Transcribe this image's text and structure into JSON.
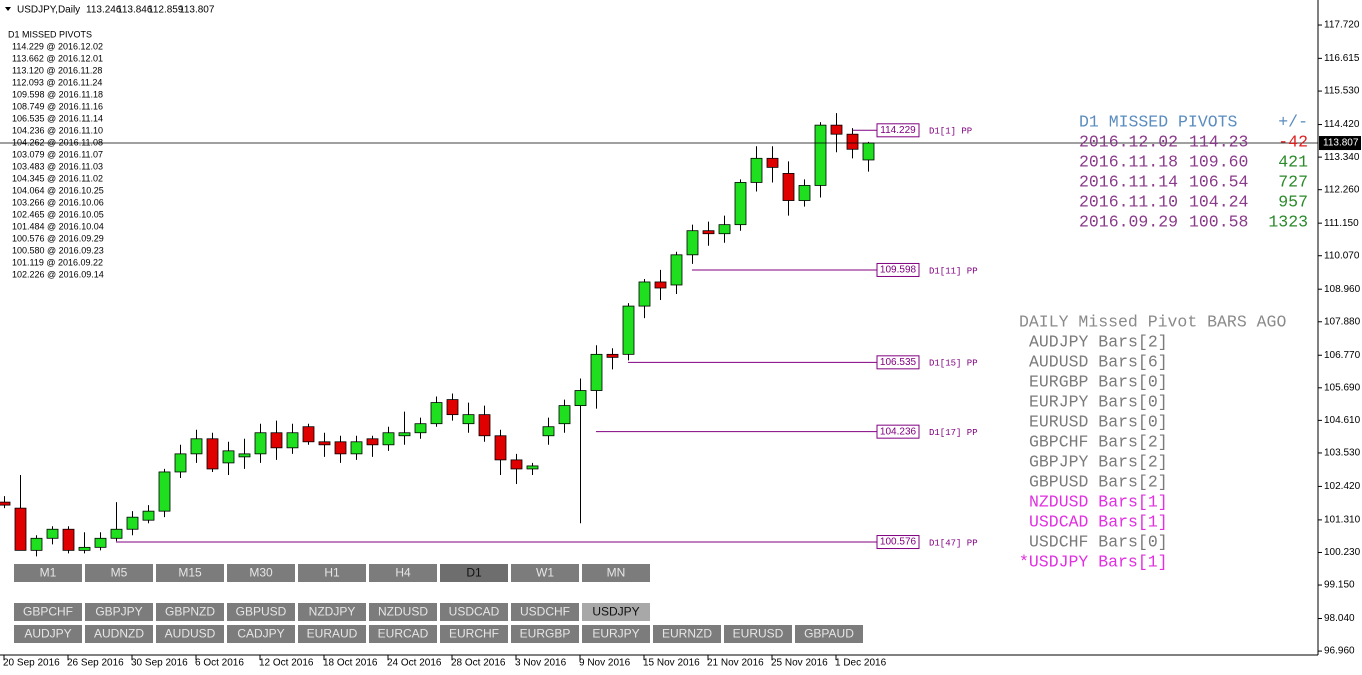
{
  "header": {
    "symbol": "USDJPY,Daily"
  },
  "chart_data": {
    "type": "candlestick",
    "categories": [
      "20 Sep 2016",
      null,
      null,
      null,
      "26 Sep 2016",
      null,
      null,
      null,
      "30 Sep 2016",
      null,
      null,
      null,
      "6 Oct 2016",
      null,
      null,
      null,
      "12 Oct 2016",
      null,
      null,
      null,
      "18 Oct 2016",
      null,
      null,
      null,
      "24 Oct 2016",
      null,
      null,
      null,
      "28 Oct 2016",
      null,
      null,
      null,
      "3 Nov 2016",
      null,
      null,
      null,
      "9 Nov 2016",
      null,
      null,
      null,
      "15 Nov 2016",
      null,
      null,
      null,
      "21 Nov 2016",
      null,
      null,
      null,
      "25 Nov 2016",
      null,
      null,
      null,
      "1 Dec 2016",
      null,
      null
    ],
    "ohlc": [
      [
        101.9,
        102.1,
        101.7,
        101.8
      ],
      [
        101.7,
        102.8,
        100.3,
        100.3
      ],
      [
        100.3,
        100.8,
        100.1,
        100.7
      ],
      [
        100.7,
        101.1,
        100.5,
        101.0
      ],
      [
        101.0,
        101.1,
        100.2,
        100.3
      ],
      [
        100.3,
        100.9,
        100.2,
        100.4
      ],
      [
        100.4,
        100.9,
        100.3,
        100.7
      ],
      [
        100.7,
        101.9,
        100.6,
        101.0
      ],
      [
        101.0,
        101.6,
        100.8,
        101.4
      ],
      [
        101.3,
        101.8,
        101.2,
        101.6
      ],
      [
        101.6,
        103.0,
        101.4,
        102.9
      ],
      [
        102.9,
        103.8,
        102.7,
        103.5
      ],
      [
        103.5,
        104.3,
        103.2,
        104.0
      ],
      [
        104.0,
        104.2,
        102.9,
        103.0
      ],
      [
        103.2,
        103.9,
        102.8,
        103.6
      ],
      [
        103.4,
        104.0,
        103.0,
        103.5
      ],
      [
        103.5,
        104.5,
        103.2,
        104.2
      ],
      [
        104.2,
        104.6,
        103.3,
        103.7
      ],
      [
        103.7,
        104.5,
        103.5,
        104.2
      ],
      [
        104.4,
        104.5,
        103.8,
        103.9
      ],
      [
        103.9,
        104.2,
        103.4,
        103.8
      ],
      [
        103.9,
        104.1,
        103.2,
        103.5
      ],
      [
        103.5,
        104.1,
        103.3,
        103.9
      ],
      [
        104.0,
        104.1,
        103.4,
        103.8
      ],
      [
        103.8,
        104.4,
        103.6,
        104.2
      ],
      [
        104.1,
        104.9,
        103.8,
        104.2
      ],
      [
        104.2,
        104.7,
        104.0,
        104.5
      ],
      [
        104.5,
        105.4,
        104.4,
        105.2
      ],
      [
        105.3,
        105.5,
        104.6,
        104.8
      ],
      [
        104.5,
        105.2,
        104.2,
        104.8
      ],
      [
        104.8,
        105.1,
        103.9,
        104.1
      ],
      [
        104.1,
        104.3,
        102.8,
        103.3
      ],
      [
        103.3,
        103.5,
        102.5,
        103.0
      ],
      [
        103.0,
        103.2,
        102.8,
        103.1
      ],
      [
        104.1,
        104.7,
        103.8,
        104.4
      ],
      [
        104.5,
        105.3,
        104.2,
        105.1
      ],
      [
        105.1,
        106.0,
        101.2,
        105.6
      ],
      [
        105.6,
        107.1,
        105.0,
        106.8
      ],
      [
        106.8,
        107.0,
        106.3,
        106.7
      ],
      [
        106.8,
        108.5,
        106.6,
        108.4
      ],
      [
        108.4,
        109.3,
        108.0,
        109.2
      ],
      [
        109.2,
        109.6,
        108.6,
        109.0
      ],
      [
        109.1,
        110.2,
        108.8,
        110.1
      ],
      [
        110.1,
        111.1,
        109.8,
        110.9
      ],
      [
        110.9,
        111.2,
        110.4,
        110.8
      ],
      [
        110.8,
        111.4,
        110.5,
        111.1
      ],
      [
        111.1,
        112.6,
        110.9,
        112.5
      ],
      [
        112.5,
        113.7,
        112.2,
        113.3
      ],
      [
        113.3,
        113.7,
        112.5,
        113.0
      ],
      [
        112.8,
        113.2,
        111.4,
        111.9
      ],
      [
        111.9,
        112.6,
        111.7,
        112.4
      ],
      [
        112.4,
        114.5,
        112.0,
        114.4
      ],
      [
        114.4,
        114.8,
        113.5,
        114.1
      ],
      [
        114.1,
        114.3,
        113.3,
        113.6
      ],
      [
        113.246,
        113.846,
        112.859,
        113.807
      ]
    ],
    "up_color": "#1ee01e",
    "down_color": "#e00000",
    "ylim": [
      96.83,
      118.55
    ],
    "yticks": [
      {
        "value": 117.72,
        "label": "117.720"
      },
      116.615,
      {
        "value": 115.53,
        "label": "115.530"
      },
      {
        "value": 114.42,
        "label": "114.420"
      },
      {
        "value": 113.34,
        "label": "113.340"
      },
      {
        "value": 112.26,
        "label": "112.260"
      },
      {
        "value": 111.15,
        "label": "111.150"
      },
      {
        "value": 110.07,
        "label": "110.070"
      },
      {
        "value": 108.96,
        "label": "108.960"
      },
      {
        "value": 107.88,
        "label": "107.880"
      },
      {
        "value": 106.77,
        "label": "106.770"
      },
      {
        "value": 105.69,
        "label": "105.690"
      },
      {
        "value": 104.61,
        "label": "104.610"
      },
      {
        "value": 103.53,
        "label": "103.530"
      },
      {
        "value": 102.42,
        "label": "102.420"
      },
      {
        "value": 101.31,
        "label": "101.310"
      },
      {
        "value": 100.23,
        "label": "100.230"
      },
      {
        "value": 99.15,
        "label": "99.150"
      },
      {
        "value": 98.04,
        "label": "98.040"
      },
      {
        "value": 96.96,
        "label": "96.960"
      }
    ],
    "pivots": [
      {
        "value": 114.229,
        "tag": "D1[1] PP",
        "date": "2016.12.02"
      },
      {
        "value": 109.598,
        "tag": "D1[11] PP",
        "date": "2016.11.18"
      },
      {
        "value": 106.535,
        "tag": "D1[15] PP",
        "date": "2016.11.14"
      },
      {
        "value": 104.236,
        "tag": "D1[17] PP",
        "date": "2016.11.10"
      },
      {
        "value": 100.576,
        "tag": "D1[47] PP",
        "date": "2016.09.29"
      }
    ],
    "pivot_color": "#800080"
  },
  "missed_list": {
    "title": "D1 MISSED PIVOTS",
    "items": [
      "114.229 @ 2016.12.02",
      "113.662 @ 2016.12.01",
      "113.120 @ 2016.11.28",
      "112.093 @ 2016.11.24",
      "109.598 @ 2016.11.18",
      "108.749 @ 2016.11.16",
      "106.535 @ 2016.11.14",
      "104.236 @ 2016.11.10",
      "104.262 @ 2016.11.08",
      "103.079 @ 2016.11.07",
      "103.483 @ 2016.11.03",
      "104.345 @ 2016.11.02",
      "104.064 @ 2016.10.25",
      "103.266 @ 2016.10.06",
      "102.465 @ 2016.10.05",
      "101.484 @ 2016.10.04",
      "100.576 @ 2016.09.29",
      "100.580 @ 2016.09.23",
      "101.119 @ 2016.09.22",
      "102.226 @ 2016.09.14"
    ]
  },
  "missed_table": {
    "headers": [
      "D1 MISSED PIVOTS",
      "+/-"
    ],
    "rows": [
      [
        "2016.12.02",
        "114.23",
        "-42"
      ],
      [
        "2016.11.18",
        "109.60",
        "421"
      ],
      [
        "2016.11.14",
        "106.54",
        "727"
      ],
      [
        "2016.11.10",
        "104.24",
        "957"
      ],
      [
        "2016.09.29",
        "100.58",
        "1323"
      ]
    ]
  },
  "bars_ago": {
    "title": "DAILY Missed Pivot BARS AGO",
    "rows": [
      {
        "text": "AUDJPY Bars[2]",
        "color": "#7a7a7a"
      },
      {
        "text": "AUDUSD Bars[6]",
        "color": "#7a7a7a"
      },
      {
        "text": "EURGBP Bars[0]",
        "color": "#7a7a7a"
      },
      {
        "text": "EURJPY Bars[0]",
        "color": "#7a7a7a"
      },
      {
        "text": "EURUSD Bars[0]",
        "color": "#7a7a7a"
      },
      {
        "text": "GBPCHF Bars[2]",
        "color": "#7a7a7a"
      },
      {
        "text": "GBPJPY Bars[2]",
        "color": "#7a7a7a"
      },
      {
        "text": "GBPUSD Bars[2]",
        "color": "#7a7a7a"
      },
      {
        "text": "NZDUSD Bars[1]",
        "color": "#e030e0"
      },
      {
        "text": "USDCAD Bars[1]",
        "color": "#e030e0"
      },
      {
        "text": "USDCHF Bars[0]",
        "color": "#7a7a7a"
      },
      {
        "text": "*USDJPY Bars[1]",
        "color": "#e030e0"
      }
    ]
  },
  "timeframes": {
    "items": [
      "M1",
      "M5",
      "M15",
      "M30",
      "H1",
      "H4",
      "D1",
      "W1",
      "MN"
    ],
    "selected": "D1"
  },
  "symbols": {
    "rows": [
      [
        "GBPCHF",
        "GBPJPY",
        "GBPNZD",
        "GBPUSD",
        "NZDJPY",
        "NZDUSD",
        "USDCAD",
        "USDCHF",
        "USDJPY"
      ],
      [
        "AUDJPY",
        "AUDNZD",
        "AUDUSD",
        "CADJPY",
        "EURAUD",
        "EURCAD",
        "EURCHF",
        "EURGBP",
        "EURJPY",
        "EURNZD",
        "EURUSD",
        "GBPAUD"
      ]
    ],
    "selected": "USDJPY"
  }
}
